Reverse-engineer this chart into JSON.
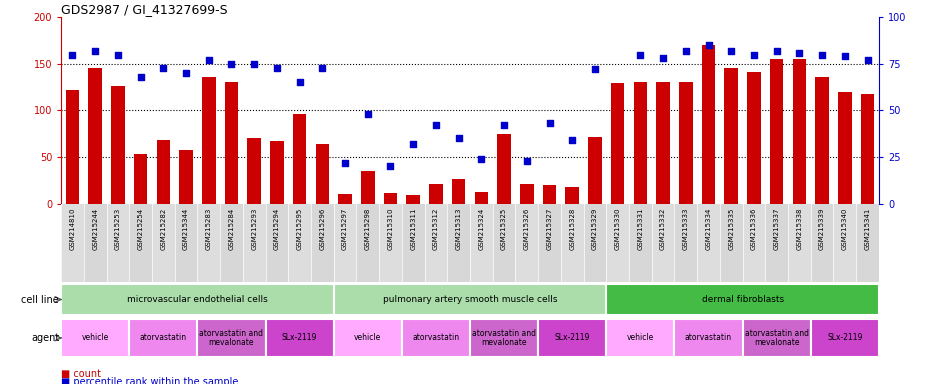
{
  "title": "GDS2987 / GI_41327699-S",
  "samples": [
    "GSM214810",
    "GSM215244",
    "GSM215253",
    "GSM215254",
    "GSM215282",
    "GSM215344",
    "GSM215283",
    "GSM215284",
    "GSM215293",
    "GSM215294",
    "GSM215295",
    "GSM215296",
    "GSM215297",
    "GSM215298",
    "GSM215310",
    "GSM215311",
    "GSM215312",
    "GSM215313",
    "GSM215324",
    "GSM215325",
    "GSM215326",
    "GSM215327",
    "GSM215328",
    "GSM215329",
    "GSM215330",
    "GSM215331",
    "GSM215332",
    "GSM215333",
    "GSM215334",
    "GSM215335",
    "GSM215336",
    "GSM215337",
    "GSM215338",
    "GSM215339",
    "GSM215340",
    "GSM215341"
  ],
  "counts": [
    122,
    145,
    126,
    53,
    68,
    57,
    136,
    131,
    70,
    67,
    96,
    64,
    10,
    35,
    11,
    9,
    21,
    26,
    12,
    75,
    21,
    20,
    18,
    71,
    129,
    131,
    131,
    131,
    170,
    145,
    141,
    155,
    155,
    136,
    120,
    118
  ],
  "percentiles": [
    80,
    82,
    80,
    68,
    73,
    70,
    77,
    75,
    75,
    73,
    65,
    73,
    22,
    48,
    20,
    32,
    42,
    35,
    24,
    42,
    23,
    43,
    34,
    72,
    null,
    80,
    78,
    82,
    85,
    82,
    80,
    82,
    81,
    80,
    79,
    77
  ],
  "bar_color": "#cc0000",
  "dot_color": "#0000cc",
  "cell_line_groups": [
    {
      "label": "microvascular endothelial cells",
      "start": 0,
      "end": 12,
      "color": "#aaddaa"
    },
    {
      "label": "pulmonary artery smooth muscle cells",
      "start": 12,
      "end": 24,
      "color": "#aaddaa"
    },
    {
      "label": "dermal fibroblasts",
      "start": 24,
      "end": 36,
      "color": "#44bb44"
    }
  ],
  "agent_groups": [
    {
      "label": "vehicle",
      "start": 0,
      "end": 3,
      "color": "#ffaaff"
    },
    {
      "label": "atorvastatin",
      "start": 3,
      "end": 6,
      "color": "#ee88ee"
    },
    {
      "label": "atorvastatin and\nmevalonate",
      "start": 6,
      "end": 9,
      "color": "#cc66cc"
    },
    {
      "label": "SLx-2119",
      "start": 9,
      "end": 12,
      "color": "#cc44cc"
    },
    {
      "label": "vehicle",
      "start": 12,
      "end": 15,
      "color": "#ffaaff"
    },
    {
      "label": "atorvastatin",
      "start": 15,
      "end": 18,
      "color": "#ee88ee"
    },
    {
      "label": "atorvastatin and\nmevalonate",
      "start": 18,
      "end": 21,
      "color": "#cc66cc"
    },
    {
      "label": "SLx-2119",
      "start": 21,
      "end": 24,
      "color": "#cc44cc"
    },
    {
      "label": "vehicle",
      "start": 24,
      "end": 27,
      "color": "#ffaaff"
    },
    {
      "label": "atorvastatin",
      "start": 27,
      "end": 30,
      "color": "#ee88ee"
    },
    {
      "label": "atorvastatin and\nmevalonate",
      "start": 30,
      "end": 33,
      "color": "#cc66cc"
    },
    {
      "label": "SLx-2119",
      "start": 33,
      "end": 36,
      "color": "#cc44cc"
    }
  ],
  "ylim_left": [
    0,
    200
  ],
  "ylim_right": [
    0,
    100
  ],
  "yticks_left": [
    0,
    50,
    100,
    150,
    200
  ],
  "yticks_right": [
    0,
    25,
    50,
    75,
    100
  ],
  "grid_values": [
    50,
    100,
    150
  ],
  "xtick_bg": "#dddddd",
  "bg_fig": "#ffffff"
}
